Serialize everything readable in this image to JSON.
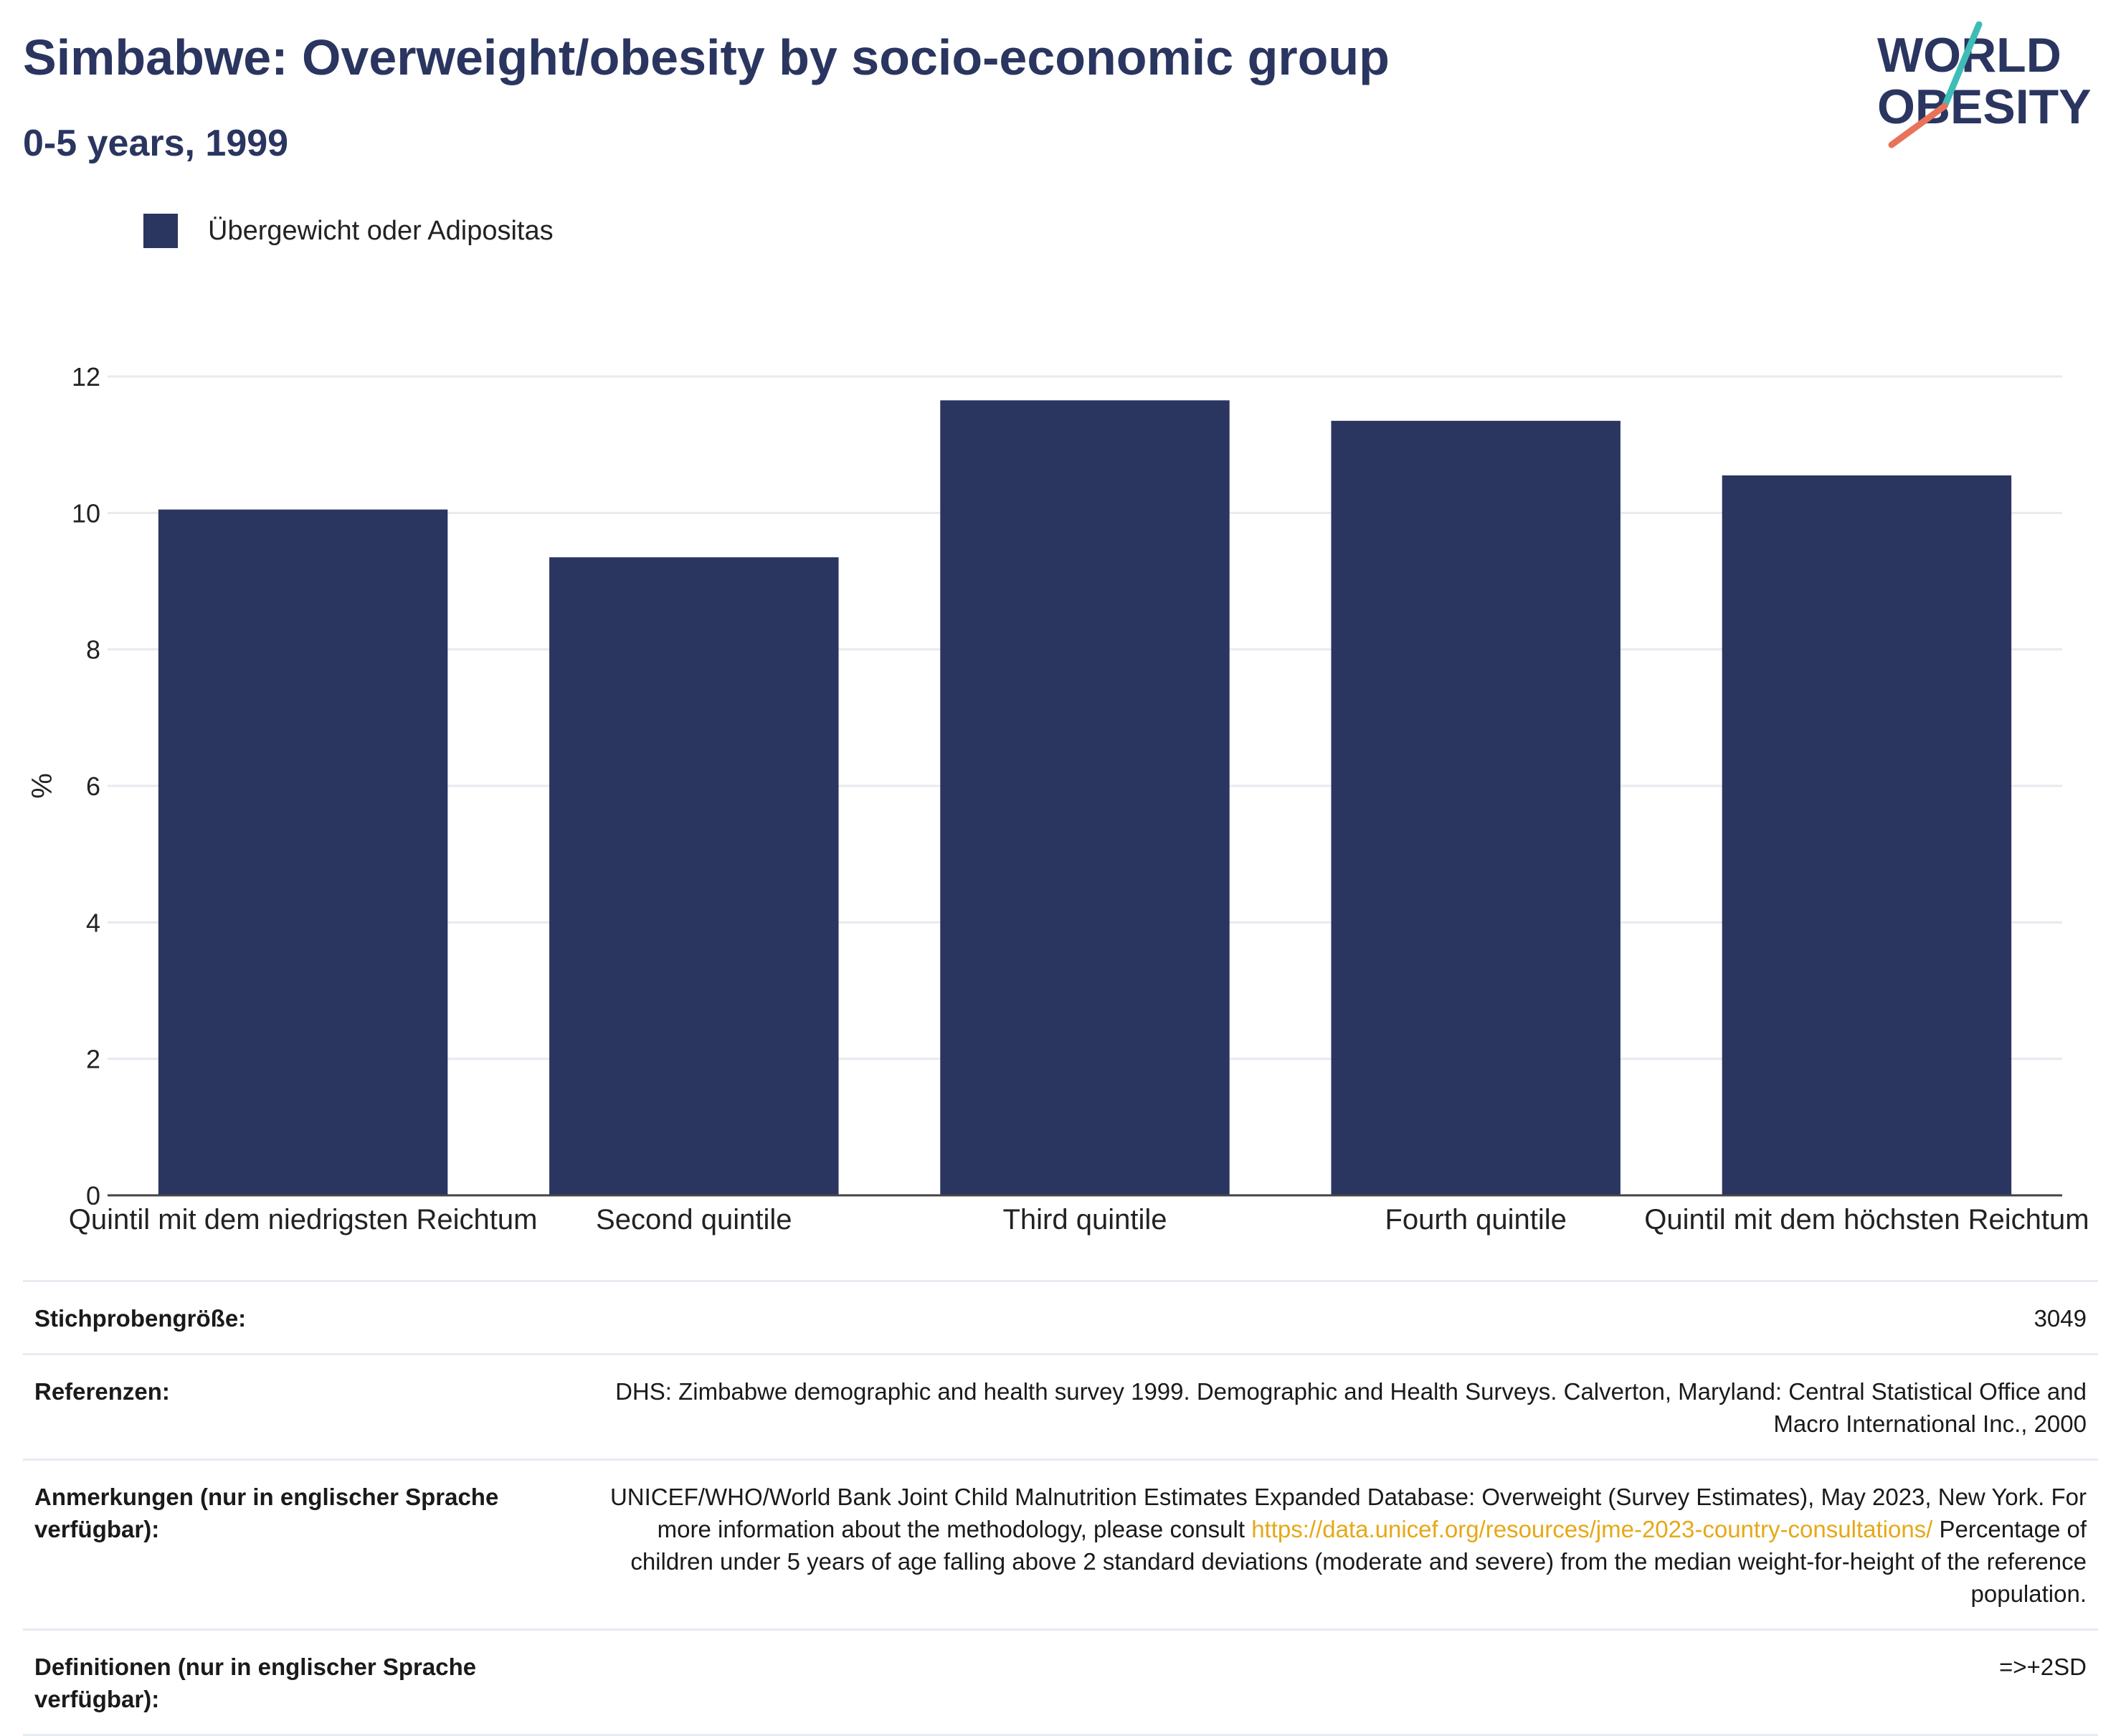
{
  "title": "Simbabwe: Overweight/obesity by socio-economic group",
  "subtitle": "0-5 years, 1999",
  "logo": {
    "line1": "WORLD",
    "line2": "OBESITY"
  },
  "colors": {
    "bar": "#2a3560",
    "title": "#2a3560",
    "logo_teal": "#3dbdb5",
    "logo_coral": "#e8735a",
    "link": "#e6a817"
  },
  "chart_data": {
    "type": "bar",
    "categories": [
      "Quintil mit dem niedrigsten Reichtum",
      "Second quintile",
      "Third quintile",
      "Fourth quintile",
      "Quintil mit dem höchsten Reichtum"
    ],
    "series": [
      {
        "name": "Übergewicht oder Adipositas",
        "values": [
          10.05,
          9.35,
          11.65,
          11.35,
          10.55
        ]
      }
    ],
    "ylabel": "%",
    "ylim": [
      0,
      12
    ],
    "yticks": [
      0,
      2,
      4,
      6,
      8,
      10,
      12
    ],
    "grid": true,
    "legend": "top-left"
  },
  "table": {
    "rows": [
      {
        "label": "Stichprobengröße:",
        "value": "3049"
      },
      {
        "label": "Referenzen:",
        "value": "DHS: Zimbabwe demographic and health survey 1999. Demographic and Health Surveys. Calverton, Maryland: Central Statistical Office and Macro International Inc., 2000"
      },
      {
        "label": "Anmerkungen (nur in englischer Sprache verfügbar):",
        "value_before": "UNICEF/WHO/World Bank Joint Child Malnutrition Estimates Expanded Database: Overweight (Survey Estimates), May 2023, New York. For more information about the methodology, please consult ",
        "link": "https://data.unicef.org/resources/jme-2023-country-consultations/",
        "value_after": " Percentage of children under 5 years of age falling above 2 standard deviations (moderate and severe) from the median weight-for-height of the reference population."
      },
      {
        "label": "Definitionen (nur in englischer Sprache verfügbar):",
        "value": "=>+2SD"
      }
    ]
  }
}
